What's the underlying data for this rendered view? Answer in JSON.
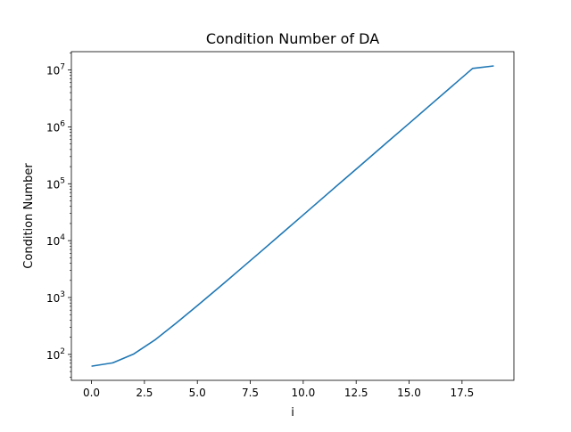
{
  "chart_data": {
    "type": "line",
    "title": "Condition Number of DA",
    "xlabel": "i",
    "ylabel": "Condition Number",
    "xscale": "linear",
    "yscale": "log",
    "xlim": [
      -0.95,
      19.95
    ],
    "ylim": [
      35,
      21000000
    ],
    "grid": false,
    "legend": "none",
    "x_ticks": [
      "0.0",
      "2.5",
      "5.0",
      "7.5",
      "10.0",
      "12.5",
      "15.0",
      "17.5"
    ],
    "y_ticks": [
      {
        "base": "10",
        "exp": "2"
      },
      {
        "base": "10",
        "exp": "3"
      },
      {
        "base": "10",
        "exp": "4"
      },
      {
        "base": "10",
        "exp": "5"
      },
      {
        "base": "10",
        "exp": "6"
      },
      {
        "base": "10",
        "exp": "7"
      }
    ],
    "series": [
      {
        "color": "#1f77b4",
        "x": [
          0,
          1,
          2,
          3,
          4,
          5,
          6,
          7,
          8,
          9,
          10,
          11,
          12,
          13,
          14,
          15,
          16,
          17,
          18,
          19
        ],
        "y": [
          62,
          71,
          102,
          180,
          355,
          720,
          1480,
          3080,
          6420,
          13500,
          28300,
          59500,
          125000,
          262000,
          550000,
          1150000,
          2420000,
          5080000,
          10650000,
          11800000
        ]
      }
    ]
  }
}
